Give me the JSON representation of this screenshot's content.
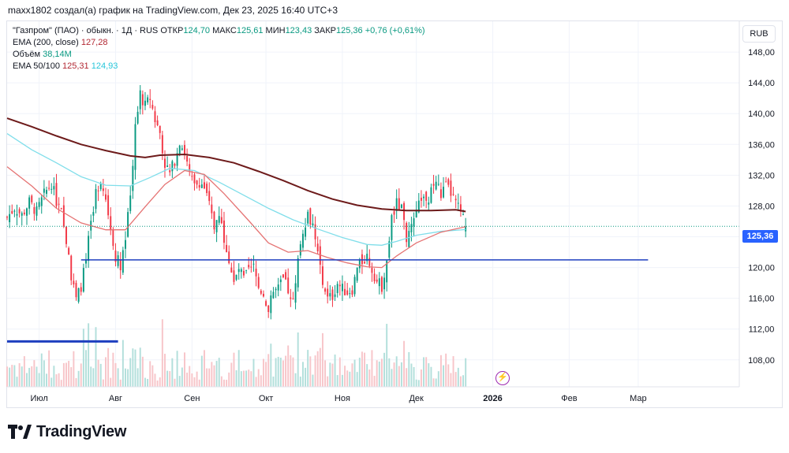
{
  "header": {
    "caption": "maxx1802 создал(а) график на TradingView.com, Дек 23, 2025 16:40 UTC+3"
  },
  "legend": {
    "symbol": "\"Газпром\" (ПАО) · обыкн. · 1Д · RUS",
    "open_label": "ОТКР",
    "open": "124,70",
    "high_label": "МАКС",
    "high": "125,61",
    "low_label": "МИН",
    "low": "123,43",
    "close_label": "ЗАКР",
    "close": "125,36",
    "change": "+0,76 (+0,61%)",
    "ema200_label": "EMA (200, close)",
    "ema200_value": "127,28",
    "volume_label": "Объём",
    "volume_value": "38,14M",
    "ema50100_label": "EMA 50/100",
    "ema50_value": "125,31",
    "ema100_value": "124,93"
  },
  "toolbar": {
    "currency_button": "RUB"
  },
  "last_price_tag": "125,36",
  "logo_text": "TradingView",
  "colors": {
    "up": "#089981",
    "down": "#f23645",
    "ema200": "#6d1a1a",
    "ema50": "#e57373",
    "ema100": "#80deea",
    "hline": "#1e3fbf",
    "volume_up": "#b2dfdb",
    "volume_down": "#f7c5c9",
    "accent": "#2962ff"
  },
  "chart_data": {
    "type": "candlestick",
    "title": "\"Газпром\" (ПАО) · обыкн. · 1Д · RUS",
    "y_ticks": [
      "148,00",
      "144,00",
      "140,00",
      "136,00",
      "132,00",
      "128,00",
      "124,00",
      "120,00",
      "116,00",
      "112,00",
      "108,00"
    ],
    "y_tick_values": [
      148,
      144,
      140,
      136,
      132,
      128,
      124,
      120,
      116,
      112,
      108
    ],
    "ylim": [
      104.5,
      152
    ],
    "x_ticks": [
      {
        "label": "Июл",
        "day": 7
      },
      {
        "label": "Авг",
        "day": 38
      },
      {
        "label": "Сен",
        "day": 69
      },
      {
        "label": "Окт",
        "day": 99
      },
      {
        "label": "Ноя",
        "day": 130
      },
      {
        "label": "Дек",
        "day": 160
      },
      {
        "label": "2026",
        "day": 191
      },
      {
        "label": "Фев",
        "day": 222
      },
      {
        "label": "Мар",
        "day": 250
      }
    ],
    "xlim": [
      -6,
      291
    ],
    "last_price": 125.36,
    "horizontal_line": {
      "value": 121.0,
      "day_from": 24,
      "day_to": 254
    },
    "segment_line": {
      "value": 110.4,
      "day_from": -6,
      "day_to": 39
    },
    "price_path": [
      [
        -6,
        126.5
      ],
      [
        -3,
        127.8
      ],
      [
        0,
        126.8
      ],
      [
        3,
        128.5
      ],
      [
        6,
        127.2
      ],
      [
        9,
        129.5
      ],
      [
        12,
        131.0
      ],
      [
        14,
        128.6
      ],
      [
        16,
        127.1
      ],
      [
        18,
        123.4
      ],
      [
        20,
        119.0
      ],
      [
        22,
        115.8
      ],
      [
        24,
        117.6
      ],
      [
        26,
        121.0
      ],
      [
        28,
        126.0
      ],
      [
        30,
        129.8
      ],
      [
        32,
        131.5
      ],
      [
        34,
        129.0
      ],
      [
        36,
        125.2
      ],
      [
        38,
        121.5
      ],
      [
        40,
        120.4
      ],
      [
        42,
        124.0
      ],
      [
        44,
        129.0
      ],
      [
        46,
        138.5
      ],
      [
        48,
        142.5
      ],
      [
        50,
        141.0
      ],
      [
        52,
        142.0
      ],
      [
        54,
        139.2
      ],
      [
        56,
        137.5
      ],
      [
        58,
        133.5
      ],
      [
        60,
        132.2
      ],
      [
        62,
        134.0
      ],
      [
        64,
        136.5
      ],
      [
        66,
        135.0
      ],
      [
        68,
        132.0
      ],
      [
        70,
        130.5
      ],
      [
        72,
        131.2
      ],
      [
        74,
        130.4
      ],
      [
        76,
        128.0
      ],
      [
        78,
        125.2
      ],
      [
        80,
        127.1
      ],
      [
        82,
        124.0
      ],
      [
        84,
        121.0
      ],
      [
        86,
        117.8
      ],
      [
        88,
        119.8
      ],
      [
        90,
        118.5
      ],
      [
        92,
        119.5
      ],
      [
        94,
        120.0
      ],
      [
        96,
        117.4
      ],
      [
        98,
        116.6
      ],
      [
        100,
        114.5
      ],
      [
        102,
        116.8
      ],
      [
        104,
        117.2
      ],
      [
        106,
        118.4
      ],
      [
        108,
        117.0
      ],
      [
        110,
        116.0
      ],
      [
        112,
        121.0
      ],
      [
        114,
        125.0
      ],
      [
        116,
        127.0
      ],
      [
        118,
        125.5
      ],
      [
        120,
        121.8
      ],
      [
        122,
        118.5
      ],
      [
        124,
        115.9
      ],
      [
        126,
        116.3
      ],
      [
        128,
        118.0
      ],
      [
        130,
        117.2
      ],
      [
        132,
        116.8
      ],
      [
        134,
        117.2
      ],
      [
        136,
        119.8
      ],
      [
        138,
        120.8
      ],
      [
        140,
        121.5
      ],
      [
        142,
        119.8
      ],
      [
        144,
        118.2
      ],
      [
        146,
        117.6
      ],
      [
        148,
        121.0
      ],
      [
        150,
        126.2
      ],
      [
        152,
        128.3
      ],
      [
        154,
        127.5
      ],
      [
        156,
        124.0
      ],
      [
        158,
        124.9
      ],
      [
        160,
        126.8
      ],
      [
        162,
        129.2
      ],
      [
        164,
        128.0
      ],
      [
        166,
        129.8
      ],
      [
        168,
        131.2
      ],
      [
        170,
        129.5
      ],
      [
        172,
        130.5
      ],
      [
        174,
        129.7
      ],
      [
        176,
        128.3
      ],
      [
        178,
        127.2
      ],
      [
        180,
        125.36
      ]
    ],
    "series": [
      {
        "name": "EMA (200, close)",
        "color": "#6d1a1a",
        "points": [
          [
            -6,
            139.4
          ],
          [
            4,
            138.3
          ],
          [
            14,
            137.1
          ],
          [
            24,
            136.0
          ],
          [
            34,
            135.2
          ],
          [
            44,
            134.5
          ],
          [
            50,
            134.3
          ],
          [
            56,
            134.6
          ],
          [
            66,
            134.7
          ],
          [
            76,
            134.3
          ],
          [
            86,
            133.6
          ],
          [
            96,
            132.5
          ],
          [
            106,
            131.3
          ],
          [
            116,
            130.0
          ],
          [
            126,
            128.9
          ],
          [
            136,
            128.1
          ],
          [
            146,
            127.6
          ],
          [
            156,
            127.4
          ],
          [
            166,
            127.4
          ],
          [
            176,
            127.5
          ],
          [
            180,
            127.28
          ]
        ]
      },
      {
        "name": "EMA 100",
        "color": "#80deea",
        "points": [
          [
            -6,
            137.4
          ],
          [
            4,
            135.3
          ],
          [
            14,
            133.6
          ],
          [
            24,
            131.8
          ],
          [
            34,
            130.7
          ],
          [
            44,
            130.6
          ],
          [
            52,
            131.7
          ],
          [
            60,
            132.9
          ],
          [
            70,
            132.6
          ],
          [
            80,
            131.1
          ],
          [
            90,
            129.4
          ],
          [
            100,
            127.7
          ],
          [
            110,
            126.2
          ],
          [
            120,
            125.0
          ],
          [
            130,
            123.9
          ],
          [
            140,
            123.0
          ],
          [
            146,
            122.9
          ],
          [
            152,
            123.4
          ],
          [
            160,
            124.2
          ],
          [
            170,
            124.7
          ],
          [
            180,
            124.93
          ]
        ]
      },
      {
        "name": "EMA 50",
        "color": "#e57373",
        "points": [
          [
            -6,
            133.1
          ],
          [
            4,
            130.6
          ],
          [
            14,
            127.7
          ],
          [
            24,
            125.8
          ],
          [
            34,
            124.9
          ],
          [
            42,
            124.9
          ],
          [
            50,
            127.9
          ],
          [
            58,
            130.8
          ],
          [
            66,
            132.6
          ],
          [
            74,
            132.1
          ],
          [
            82,
            129.6
          ],
          [
            92,
            126.1
          ],
          [
            100,
            123.2
          ],
          [
            108,
            122.0
          ],
          [
            116,
            122.2
          ],
          [
            124,
            121.3
          ],
          [
            132,
            120.6
          ],
          [
            140,
            120.1
          ],
          [
            146,
            120.0
          ],
          [
            152,
            121.5
          ],
          [
            160,
            123.2
          ],
          [
            170,
            124.6
          ],
          [
            180,
            125.31
          ]
        ]
      }
    ]
  }
}
